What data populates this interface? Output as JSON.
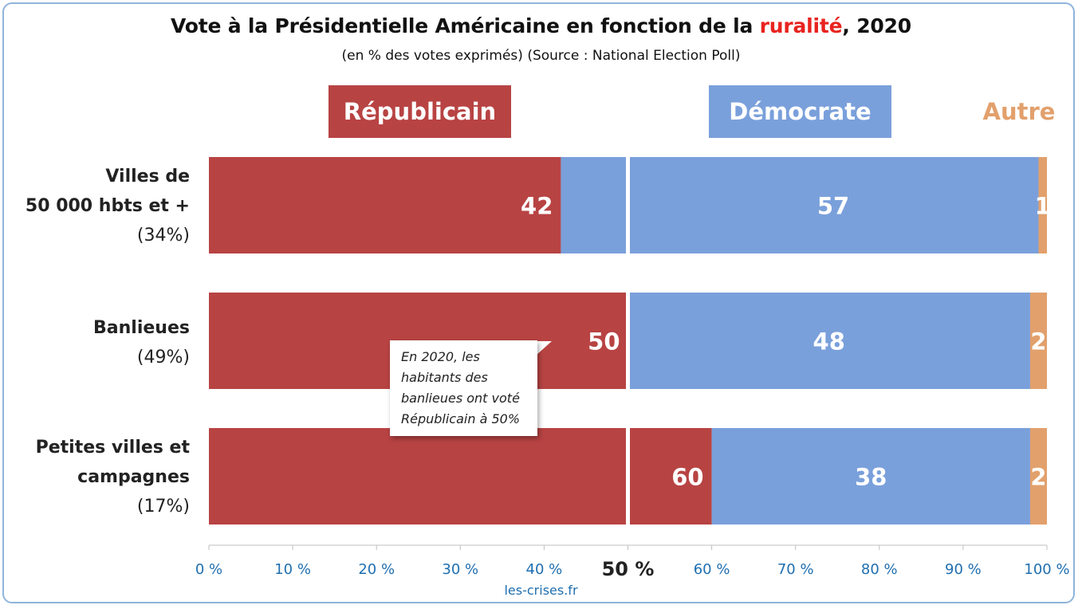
{
  "chart_data": {
    "type": "bar",
    "orientation": "horizontal",
    "stacked": true,
    "title_parts": {
      "before": "Vote à la Présidentielle Américaine en fonction de la ",
      "accent": "ruralité",
      "after": ", 2020"
    },
    "subtitle": "(en % des votes exprimés) (Source : National Election Poll)",
    "legend": {
      "republicain": "Républicain",
      "democrate": "Démocrate",
      "autre": "Autre"
    },
    "categories": [
      {
        "line1": "Villes de",
        "line2": "50 000 hbts et +",
        "share": "(34%)"
      },
      {
        "line1": "Banlieues",
        "line2": "",
        "share": "(49%)"
      },
      {
        "line1": "Petites villes et",
        "line2": "campagnes",
        "share": "(17%)"
      }
    ],
    "series": [
      {
        "name": "Républicain",
        "values": [
          42,
          50,
          60
        ],
        "labels": [
          "42",
          "50",
          "60"
        ]
      },
      {
        "name": "Démocrate",
        "values": [
          57,
          48,
          38
        ],
        "labels": [
          "57",
          "48",
          "38"
        ]
      },
      {
        "name": "Autre",
        "values": [
          1,
          2,
          2
        ],
        "labels": [
          "1",
          "2",
          "2"
        ]
      }
    ],
    "xlim": [
      0,
      100
    ],
    "x_ticks": [
      "0 %",
      "10 %",
      "20 %",
      "30 %",
      "40 %",
      "50 %",
      "60 %",
      "70 %",
      "80 %",
      "90 %",
      "100 %"
    ],
    "midline": 50,
    "annotation": {
      "lines": [
        "En 2020, les",
        "habitants des",
        "banlieues ont voté",
        "Républicain à 50%"
      ]
    },
    "source": "les-crises.fr",
    "colors": {
      "republicain": "#b84343",
      "democrate": "#7aa0db",
      "autre": "#e2a06c",
      "title_accent": "#e8231f",
      "tick": "#1f6fb0",
      "frame": "#8fb4dc"
    }
  }
}
